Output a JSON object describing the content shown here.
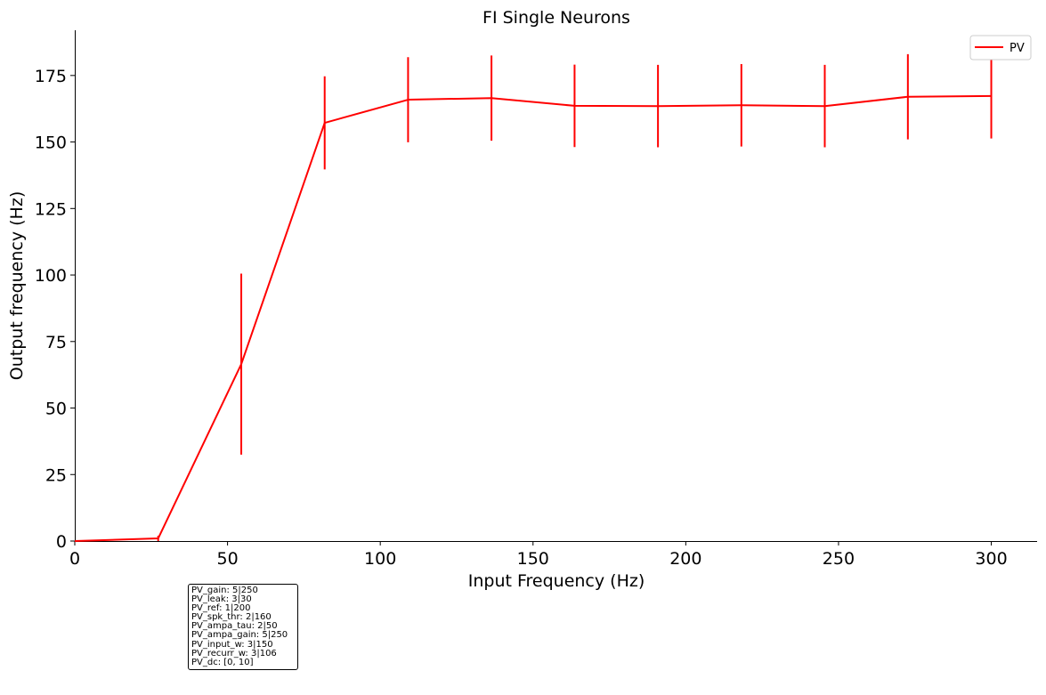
{
  "chart_data": {
    "type": "line",
    "title": "FI Single Neurons",
    "xlabel": "Input Frequency (Hz)",
    "ylabel": "Output frequency (Hz)",
    "xlim": [
      0,
      315
    ],
    "ylim": [
      0,
      192
    ],
    "xticks": [
      0,
      50,
      100,
      150,
      200,
      250,
      300
    ],
    "yticks": [
      0,
      25,
      50,
      75,
      100,
      125,
      150,
      175
    ],
    "grid": false,
    "legend_position": "top-right",
    "series": [
      {
        "name": "PV",
        "color": "#ff0000",
        "x": [
          0,
          27.3,
          54.5,
          81.8,
          109.1,
          136.4,
          163.6,
          190.9,
          218.2,
          245.5,
          272.7,
          300
        ],
        "y": [
          0,
          1,
          66.5,
          157.2,
          165.9,
          166.5,
          163.6,
          163.5,
          163.8,
          163.5,
          167,
          167.3
        ],
        "err": [
          0,
          1,
          34,
          17.5,
          16,
          16,
          15.5,
          15.5,
          15.5,
          15.5,
          16,
          16
        ]
      }
    ]
  },
  "params_box": [
    "PV_gain: 5|250",
    "PV_leak: 3|30",
    "PV_ref: 1|200",
    "PV_spk_thr: 2|160",
    "PV_ampa_tau: 2|50",
    "PV_ampa_gain: 5|250",
    "PV_input_w: 3|150",
    "PV_recurr_w: 3|106",
    "PV_dc: [0, 10]"
  ]
}
